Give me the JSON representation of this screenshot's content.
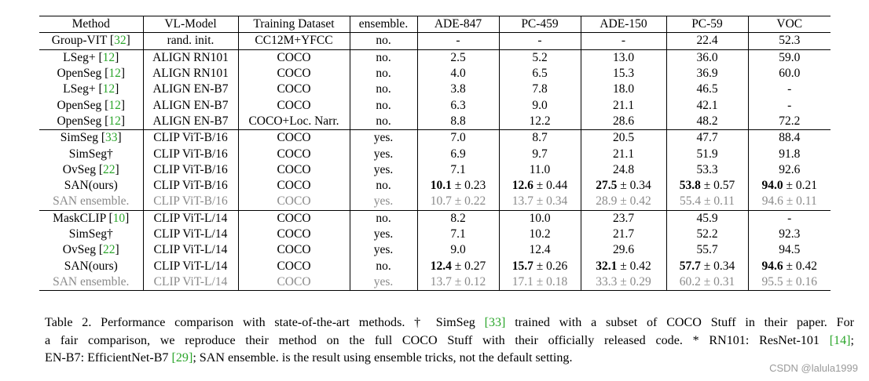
{
  "columns": [
    "Method",
    "VL-Model",
    "Training Dataset",
    "ensemble.",
    "ADE-847",
    "PC-459",
    "ADE-150",
    "PC-59",
    "VOC"
  ],
  "groups": [
    [
      {
        "method": "Group-VIT",
        "ref": "32",
        "model": "rand. init.",
        "dataset": "CC12M+YFCC",
        "ens": "no.",
        "vals": [
          {
            "v": "-"
          },
          {
            "v": "-"
          },
          {
            "v": "-"
          },
          {
            "v": "22.4"
          },
          {
            "v": "52.3"
          }
        ]
      }
    ],
    [
      {
        "method": "LSeg+",
        "ref": "12",
        "model": "ALIGN RN101",
        "dataset": "COCO",
        "ens": "no.",
        "vals": [
          {
            "v": "2.5"
          },
          {
            "v": "5.2"
          },
          {
            "v": "13.0"
          },
          {
            "v": "36.0"
          },
          {
            "v": "59.0"
          }
        ]
      },
      {
        "method": "OpenSeg",
        "ref": "12",
        "model": "ALIGN RN101",
        "dataset": "COCO",
        "ens": "no.",
        "vals": [
          {
            "v": "4.0"
          },
          {
            "v": "6.5"
          },
          {
            "v": "15.3"
          },
          {
            "v": "36.9"
          },
          {
            "v": "60.0"
          }
        ]
      },
      {
        "method": "LSeg+",
        "ref": "12",
        "model": "ALIGN EN-B7",
        "dataset": "COCO",
        "ens": "no.",
        "vals": [
          {
            "v": "3.8"
          },
          {
            "v": "7.8"
          },
          {
            "v": "18.0"
          },
          {
            "v": "46.5"
          },
          {
            "v": "-"
          }
        ]
      },
      {
        "method": "OpenSeg",
        "ref": "12",
        "model": "ALIGN EN-B7",
        "dataset": "COCO",
        "ens": "no.",
        "vals": [
          {
            "v": "6.3"
          },
          {
            "v": "9.0"
          },
          {
            "v": "21.1"
          },
          {
            "v": "42.1"
          },
          {
            "v": "-"
          }
        ]
      },
      {
        "method": "OpenSeg",
        "ref": "12",
        "model": "ALIGN EN-B7",
        "dataset": "COCO+Loc. Narr.",
        "ens": "no.",
        "vals": [
          {
            "v": "8.8"
          },
          {
            "v": "12.2"
          },
          {
            "v": "28.6"
          },
          {
            "v": "48.2"
          },
          {
            "v": "72.2"
          }
        ]
      }
    ],
    [
      {
        "method": "SimSeg",
        "ref": "33",
        "model": "CLIP ViT-B/16",
        "dataset": "COCO",
        "ens": "yes.",
        "vals": [
          {
            "v": "7.0"
          },
          {
            "v": "8.7"
          },
          {
            "v": "20.5"
          },
          {
            "v": "47.7"
          },
          {
            "v": "88.4"
          }
        ]
      },
      {
        "method": "SimSeg†",
        "model": "CLIP ViT-B/16",
        "dataset": "COCO",
        "ens": "yes.",
        "vals": [
          {
            "v": "6.9"
          },
          {
            "v": "9.7"
          },
          {
            "v": "21.1"
          },
          {
            "v": "51.9"
          },
          {
            "v": "91.8"
          }
        ]
      },
      {
        "method": "OvSeg",
        "ref": "22",
        "model": "CLIP ViT-B/16",
        "dataset": "COCO",
        "ens": "yes.",
        "vals": [
          {
            "v": "7.1"
          },
          {
            "v": "11.0"
          },
          {
            "v": "24.8"
          },
          {
            "v": "53.3"
          },
          {
            "v": "92.6"
          }
        ]
      },
      {
        "method": "SAN(ours)",
        "model": "CLIP ViT-B/16",
        "dataset": "COCO",
        "ens": "no.",
        "vals": [
          {
            "v": "10.1",
            "pm": "± 0.23",
            "bold": true
          },
          {
            "v": "12.6",
            "pm": "± 0.44",
            "bold": true
          },
          {
            "v": "27.5",
            "pm": "± 0.34",
            "bold": true
          },
          {
            "v": "53.8",
            "pm": "± 0.57",
            "bold": true
          },
          {
            "v": "94.0",
            "pm": "± 0.21",
            "bold": true
          }
        ]
      },
      {
        "method": "SAN ensemble.",
        "model": "CLIP ViT-B/16",
        "dataset": "COCO",
        "ens": "yes.",
        "gray": true,
        "vals": [
          {
            "v": "10.7",
            "pm": "± 0.22"
          },
          {
            "v": "13.7",
            "pm": "± 0.34"
          },
          {
            "v": "28.9",
            "pm": "± 0.42"
          },
          {
            "v": "55.4",
            "pm": "± 0.11"
          },
          {
            "v": "94.6",
            "pm": "± 0.11"
          }
        ]
      }
    ],
    [
      {
        "method": "MaskCLIP",
        "ref": "10",
        "model": "CLIP ViT-L/14",
        "dataset": "COCO",
        "ens": "no.",
        "vals": [
          {
            "v": "8.2"
          },
          {
            "v": "10.0"
          },
          {
            "v": "23.7"
          },
          {
            "v": "45.9"
          },
          {
            "v": "-"
          }
        ]
      },
      {
        "method": "SimSeg†",
        "model": "CLIP ViT-L/14",
        "dataset": "COCO",
        "ens": "yes.",
        "vals": [
          {
            "v": "7.1"
          },
          {
            "v": "10.2"
          },
          {
            "v": "21.7"
          },
          {
            "v": "52.2"
          },
          {
            "v": "92.3"
          }
        ]
      },
      {
        "method": "OvSeg",
        "ref": "22",
        "model": "CLIP ViT-L/14",
        "dataset": "COCO",
        "ens": "yes.",
        "vals": [
          {
            "v": "9.0"
          },
          {
            "v": "12.4"
          },
          {
            "v": "29.6"
          },
          {
            "v": "55.7"
          },
          {
            "v": "94.5"
          }
        ]
      },
      {
        "method": "SAN(ours)",
        "model": "CLIP ViT-L/14",
        "dataset": "COCO",
        "ens": "no.",
        "vals": [
          {
            "v": "12.4",
            "pm": "± 0.27",
            "bold": true
          },
          {
            "v": "15.7",
            "pm": "± 0.26",
            "bold": true
          },
          {
            "v": "32.1",
            "pm": "± 0.42",
            "bold": true
          },
          {
            "v": "57.7",
            "pm": "± 0.34",
            "bold": true
          },
          {
            "v": "94.6",
            "pm": "± 0.42",
            "bold": true
          }
        ]
      },
      {
        "method": "SAN ensemble.",
        "model": "CLIP ViT-L/14",
        "dataset": "COCO",
        "ens": "yes.",
        "gray": true,
        "vals": [
          {
            "v": "13.7",
            "pm": "± 0.12"
          },
          {
            "v": "17.1",
            "pm": "± 0.18"
          },
          {
            "v": "33.3",
            "pm": "± 0.29"
          },
          {
            "v": "60.2",
            "pm": "± 0.31"
          },
          {
            "v": "95.5",
            "pm": "± 0.16"
          }
        ]
      }
    ]
  ],
  "caption": {
    "lines": [
      [
        {
          "t": "Table 2. Performance comparison with state-of-the-art methods. † SimSeg "
        },
        {
          "t": "[33]",
          "ref": true
        },
        {
          "t": " trained with a subset of COCO Stuff in their paper. For"
        }
      ],
      [
        {
          "t": "a fair comparison, we reproduce their method on the full COCO Stuff with their officially released code. * RN101: ResNet-101 "
        },
        {
          "t": "[14]",
          "ref": true
        },
        {
          "t": ";"
        }
      ],
      [
        {
          "t": "EN-B7: EfficientNet-B7 "
        },
        {
          "t": "[29]",
          "ref": true
        },
        {
          "t": "; SAN ensemble. is the result using ensemble tricks, not the default setting."
        }
      ]
    ]
  },
  "watermark": "CSDN @lalula1999"
}
